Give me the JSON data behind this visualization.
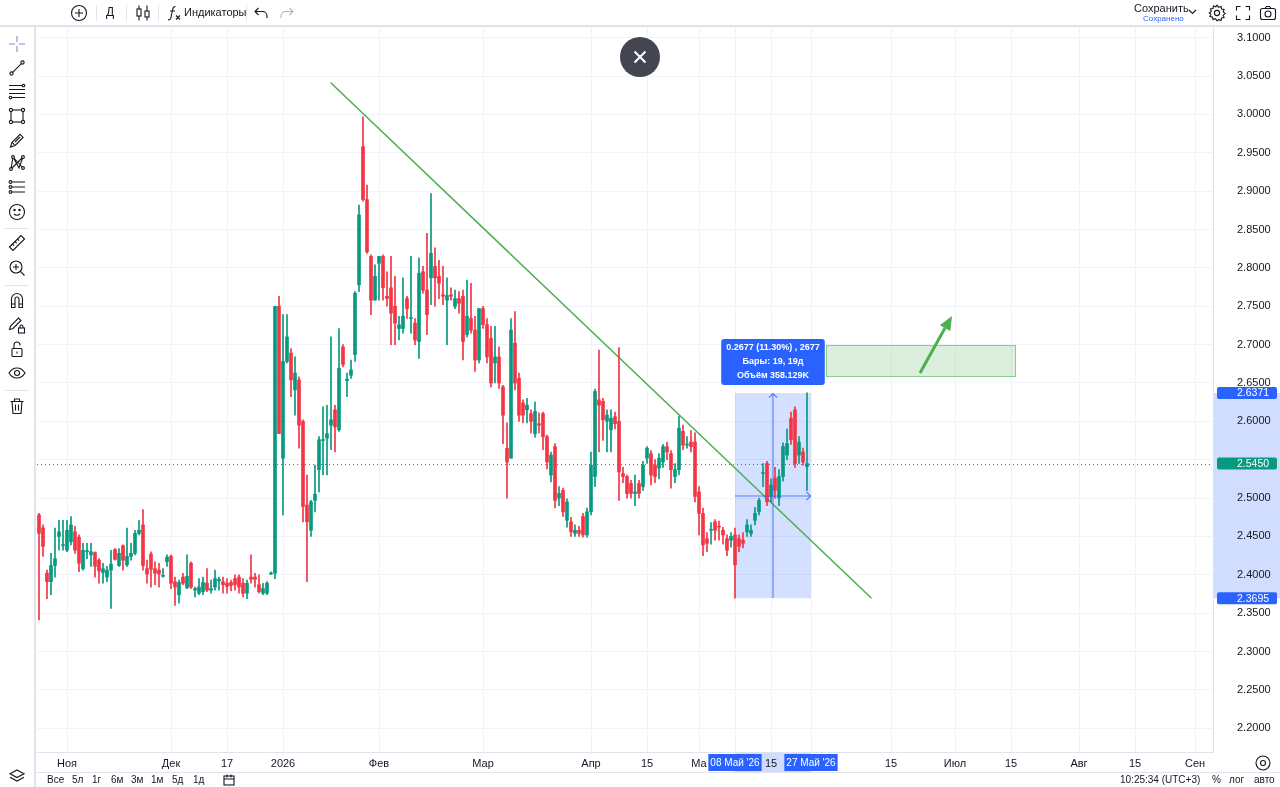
{
  "chart_data": {
    "type": "candlestick",
    "categories": [
      null,
      null,
      null,
      null,
      null,
      null,
      null,
      "Ноя",
      null,
      null,
      null,
      null,
      null,
      null,
      null,
      null,
      null,
      null,
      null,
      null,
      null,
      null,
      null,
      null,
      null,
      null,
      null,
      null,
      null,
      null,
      null,
      null,
      null,
      "Дек",
      null,
      null,
      null,
      null,
      null,
      null,
      null,
      null,
      null,
      null,
      null,
      null,
      null,
      "17",
      null,
      null,
      null,
      null,
      null,
      null,
      null,
      null,
      null,
      null,
      null,
      null,
      null,
      "2026",
      null,
      null,
      null,
      null,
      null,
      null,
      null,
      null,
      null,
      null,
      null,
      null,
      null,
      null,
      null,
      null,
      null,
      null,
      null,
      null,
      null,
      null,
      null,
      "Фев",
      null,
      null,
      null,
      null,
      null,
      null,
      null,
      null,
      null,
      null,
      null,
      null,
      null,
      null,
      null,
      null,
      null,
      null,
      null,
      null,
      null,
      null,
      null,
      null,
      null,
      "Мар",
      null,
      null,
      null,
      null,
      null,
      null,
      null,
      null,
      null,
      null,
      null,
      null,
      null,
      null,
      null,
      null,
      null,
      null,
      null,
      null,
      null,
      null,
      null,
      null,
      null,
      null,
      "Апр",
      null,
      null,
      null,
      null,
      null,
      null,
      null,
      null,
      null,
      null,
      null,
      null,
      null,
      "15",
      null,
      null,
      null,
      null,
      null,
      null,
      null,
      null,
      null,
      null,
      null,
      null,
      "Ма",
      null,
      null,
      null,
      null,
      null,
      null,
      null,
      null,
      "08 Май '26",
      null,
      null,
      null,
      null,
      null,
      null,
      null,
      null,
      "15",
      null,
      null,
      null,
      null,
      null,
      null,
      null,
      null,
      null,
      "27 Май '26",
      null,
      null,
      null,
      null,
      null,
      null,
      null,
      null,
      null,
      null,
      null,
      null,
      null,
      null,
      null,
      null,
      null,
      null,
      null,
      "15",
      null,
      null,
      null,
      null,
      null,
      null,
      null,
      null,
      null,
      null,
      null,
      null,
      null,
      null,
      null,
      "Июл",
      null,
      null,
      null,
      null,
      null,
      null,
      null,
      null,
      null,
      null,
      null,
      null,
      null,
      "15",
      null,
      null,
      null,
      null,
      null,
      null,
      null,
      null,
      null,
      null,
      null,
      null,
      null,
      null,
      null,
      null,
      "Авг",
      null,
      null,
      null,
      null,
      null,
      null,
      null,
      null,
      null,
      null,
      null,
      null,
      null,
      "15",
      null,
      null,
      null,
      null,
      null,
      null,
      null,
      null,
      null,
      null,
      null,
      null,
      null,
      null,
      "Сен",
      null,
      null,
      null,
      null
    ],
    "ohlc": [
      [
        2.478,
        2.48,
        2.341,
        2.454
      ],
      [
        2.461,
        2.465,
        2.424,
        2.437
      ],
      [
        2.402,
        2.406,
        2.369,
        2.391
      ],
      [
        2.391,
        2.428,
        2.374,
        2.412
      ],
      [
        2.412,
        2.461,
        2.397,
        2.421
      ],
      [
        2.45,
        2.471,
        2.432,
        2.456
      ],
      [
        2.438,
        2.471,
        2.432,
        2.439
      ],
      [
        2.432,
        2.471,
        2.43,
        2.458
      ],
      [
        2.443,
        2.476,
        2.439,
        2.465
      ],
      [
        2.456,
        2.463,
        2.428,
        2.432
      ],
      [
        2.449,
        2.452,
        2.404,
        2.415
      ],
      [
        2.408,
        2.441,
        2.406,
        2.432
      ],
      [
        2.43,
        2.441,
        2.421,
        2.431
      ],
      [
        2.426,
        2.441,
        2.411,
        2.43
      ],
      [
        2.429,
        2.43,
        2.397,
        2.411
      ],
      [
        2.419,
        2.421,
        2.389,
        2.405
      ],
      [
        2.403,
        2.415,
        2.389,
        2.408
      ],
      [
        2.397,
        2.411,
        2.391,
        2.406
      ],
      [
        2.406,
        2.432,
        2.356,
        2.414
      ],
      [
        2.433,
        2.434,
        2.419,
        2.42
      ],
      [
        2.412,
        2.434,
        2.411,
        2.428
      ],
      [
        2.438,
        2.439,
        2.406,
        2.419
      ],
      [
        2.413,
        2.461,
        2.411,
        2.424
      ],
      [
        2.424,
        2.441,
        2.419,
        2.428
      ],
      [
        2.428,
        2.458,
        2.426,
        2.454
      ],
      [
        2.454,
        2.471,
        2.452,
        2.458
      ],
      [
        2.465,
        2.485,
        2.406,
        2.412
      ],
      [
        2.408,
        2.419,
        2.389,
        2.401
      ],
      [
        2.427,
        2.43,
        2.384,
        2.407
      ],
      [
        2.408,
        2.417,
        2.387,
        2.402
      ],
      [
        2.406,
        2.415,
        2.384,
        2.401
      ],
      [
        2.398,
        2.408,
        2.397,
        2.398
      ],
      [
        2.417,
        2.426,
        2.411,
        2.423
      ],
      [
        2.424,
        2.426,
        2.382,
        2.389
      ],
      [
        2.391,
        2.397,
        2.36,
        2.384
      ],
      [
        2.374,
        2.393,
        2.363,
        2.39
      ],
      [
        2.397,
        2.402,
        2.387,
        2.389
      ],
      [
        2.383,
        2.426,
        2.382,
        2.398
      ],
      [
        2.415,
        2.417,
        2.382,
        2.384
      ],
      [
        2.38,
        2.384,
        2.371,
        2.382
      ],
      [
        2.376,
        2.395,
        2.374,
        2.384
      ],
      [
        2.378,
        2.397,
        2.374,
        2.39
      ],
      [
        2.389,
        2.408,
        2.378,
        2.38
      ],
      [
        2.38,
        2.393,
        2.376,
        2.382
      ],
      [
        2.384,
        2.406,
        2.38,
        2.395
      ],
      [
        2.392,
        2.397,
        2.38,
        2.394
      ],
      [
        2.391,
        2.397,
        2.376,
        2.387
      ],
      [
        2.389,
        2.395,
        2.376,
        2.385
      ],
      [
        2.39,
        2.393,
        2.379,
        2.386
      ],
      [
        2.395,
        2.4,
        2.38,
        2.387
      ],
      [
        2.397,
        2.4,
        2.376,
        2.384
      ],
      [
        2.389,
        2.395,
        2.371,
        2.376
      ],
      [
        2.376,
        2.393,
        2.369,
        2.389
      ],
      [
        2.397,
        2.426,
        2.389,
        2.394
      ],
      [
        2.397,
        2.402,
        2.384,
        2.394
      ],
      [
        2.387,
        2.4,
        2.376,
        2.378
      ],
      [
        2.376,
        2.389,
        2.374,
        2.382
      ],
      [
        2.376,
        2.391,
        2.374,
        2.389
      ],
      [
        2.401,
        2.404,
        2.4,
        2.402
      ],
      [
        2.402,
        2.75,
        2.395,
        2.75
      ],
      [
        2.75,
        2.763,
        2.584,
        2.584
      ],
      [
        2.552,
        2.739,
        2.478,
        2.678
      ],
      [
        2.678,
        2.739,
        2.676,
        2.71
      ],
      [
        2.689,
        2.695,
        2.632,
        2.654
      ],
      [
        2.641,
        2.684,
        2.608,
        2.663
      ],
      [
        2.654,
        2.658,
        2.565,
        2.595
      ],
      [
        2.6,
        2.602,
        2.469,
        2.489
      ],
      [
        2.491,
        2.53,
        2.391,
        2.469
      ],
      [
        2.458,
        2.497,
        2.45,
        2.495
      ],
      [
        2.497,
        2.543,
        2.482,
        2.505
      ],
      [
        2.537,
        2.58,
        2.508,
        2.576
      ],
      [
        2.575,
        2.619,
        2.53,
        2.576
      ],
      [
        2.578,
        2.621,
        2.53,
        2.584
      ],
      [
        2.595,
        2.71,
        2.563,
        2.602
      ],
      [
        2.615,
        2.621,
        2.56,
        2.593
      ],
      [
        2.589,
        2.721,
        2.587,
        2.669
      ],
      [
        2.697,
        2.7,
        2.671,
        2.674
      ],
      [
        2.653,
        2.663,
        2.632,
        2.655
      ],
      [
        2.66,
        2.68,
        2.656,
        2.667
      ],
      [
        2.687,
        2.769,
        2.678,
        2.767
      ],
      [
        2.778,
        2.882,
        2.769,
        2.869
      ],
      [
        2.958,
        2.997,
        2.887,
        2.889
      ],
      [
        2.889,
        2.908,
        2.819,
        2.821
      ],
      [
        2.815,
        2.817,
        2.739,
        2.758
      ],
      [
        2.758,
        2.804,
        2.758,
        2.789
      ],
      [
        2.806,
        2.815,
        2.758,
        2.815
      ],
      [
        2.815,
        2.817,
        2.758,
        2.774
      ],
      [
        2.763,
        2.795,
        2.75,
        2.76
      ],
      [
        2.774,
        2.815,
        2.7,
        2.741
      ],
      [
        2.75,
        2.789,
        2.7,
        2.728
      ],
      [
        2.721,
        2.737,
        2.706,
        2.726
      ],
      [
        2.721,
        2.787,
        2.715,
        2.737
      ],
      [
        2.76,
        2.763,
        2.734,
        2.747
      ],
      [
        2.734,
        2.815,
        2.715,
        2.734
      ],
      [
        2.728,
        2.734,
        2.7,
        2.706
      ],
      [
        2.704,
        2.813,
        2.682,
        2.793
      ],
      [
        2.795,
        2.802,
        2.767,
        2.771
      ],
      [
        2.771,
        2.845,
        2.713,
        2.739
      ],
      [
        2.787,
        2.897,
        2.752,
        2.819
      ],
      [
        2.802,
        2.826,
        2.75,
        2.787
      ],
      [
        2.789,
        2.81,
        2.76,
        2.78
      ],
      [
        2.765,
        2.802,
        2.752,
        2.763
      ],
      [
        2.758,
        2.787,
        2.7,
        2.764
      ],
      [
        2.765,
        2.774,
        2.758,
        2.763
      ],
      [
        2.75,
        2.771,
        2.747,
        2.76
      ],
      [
        2.76,
        2.769,
        2.741,
        2.754
      ],
      [
        2.763,
        2.771,
        2.68,
        2.704
      ],
      [
        2.713,
        2.784,
        2.71,
        2.737
      ],
      [
        2.734,
        2.78,
        2.715,
        2.719
      ],
      [
        2.719,
        2.737,
        2.665,
        2.68
      ],
      [
        2.68,
        2.747,
        2.676,
        2.747
      ],
      [
        2.747,
        2.75,
        2.721,
        2.726
      ],
      [
        2.726,
        2.734,
        2.676,
        2.684
      ],
      [
        2.708,
        2.724,
        2.645,
        2.65
      ],
      [
        2.676,
        2.724,
        2.65,
        2.684
      ],
      [
        2.684,
        2.697,
        2.643,
        2.65
      ],
      [
        2.645,
        2.647,
        2.571,
        2.608
      ],
      [
        2.565,
        2.598,
        2.5,
        2.547
      ],
      [
        2.552,
        2.734,
        2.552,
        2.719
      ],
      [
        2.702,
        2.743,
        2.641,
        2.65
      ],
      [
        2.656,
        2.663,
        2.6,
        2.608
      ],
      [
        2.624,
        2.628,
        2.598,
        2.608
      ],
      [
        2.615,
        2.63,
        2.598,
        2.621
      ],
      [
        2.61,
        2.615,
        2.585,
        2.6
      ],
      [
        2.584,
        2.625,
        2.579,
        2.613
      ],
      [
        2.597,
        2.611,
        2.585,
        2.595
      ],
      [
        2.61,
        2.612,
        2.563,
        2.58
      ],
      [
        2.58,
        2.582,
        2.538,
        2.547
      ],
      [
        2.53,
        2.56,
        2.521,
        2.556
      ],
      [
        2.567,
        2.571,
        2.487,
        2.497
      ],
      [
        2.5,
        2.515,
        2.49,
        2.506
      ],
      [
        2.51,
        2.513,
        2.476,
        2.482
      ],
      [
        2.471,
        2.499,
        2.462,
        2.495
      ],
      [
        2.469,
        2.475,
        2.45,
        2.456
      ],
      [
        2.454,
        2.465,
        2.45,
        2.458
      ],
      [
        2.458,
        2.463,
        2.45,
        2.454
      ],
      [
        2.476,
        2.48,
        2.449,
        2.452
      ],
      [
        2.452,
        2.487,
        2.449,
        2.482
      ],
      [
        2.482,
        2.56,
        2.478,
        2.543
      ],
      [
        2.528,
        2.642,
        2.515,
        2.639
      ],
      [
        2.628,
        2.693,
        2.56,
        2.621
      ],
      [
        2.626,
        2.63,
        2.575,
        2.602
      ],
      [
        2.6,
        2.615,
        2.56,
        2.608
      ],
      [
        2.589,
        2.615,
        2.56,
        2.604
      ],
      [
        2.606,
        2.612,
        2.59,
        2.597
      ],
      [
        2.6,
        2.696,
        2.497,
        2.534
      ],
      [
        2.532,
        2.54,
        2.52,
        2.528
      ],
      [
        2.528,
        2.53,
        2.5,
        2.506
      ],
      [
        2.519,
        2.523,
        2.5,
        2.506
      ],
      [
        2.506,
        2.53,
        2.49,
        2.508
      ],
      [
        2.519,
        2.523,
        2.5,
        2.506
      ],
      [
        2.515,
        2.548,
        2.51,
        2.543
      ],
      [
        2.552,
        2.567,
        2.545,
        2.565
      ],
      [
        2.558,
        2.562,
        2.517,
        2.53
      ],
      [
        2.543,
        2.55,
        2.52,
        2.528
      ],
      [
        2.539,
        2.558,
        2.525,
        2.552
      ],
      [
        2.547,
        2.57,
        2.54,
        2.567
      ],
      [
        2.567,
        2.573,
        2.55,
        2.56
      ],
      [
        2.558,
        2.562,
        2.513,
        2.537
      ],
      [
        2.528,
        2.545,
        2.52,
        2.537
      ],
      [
        2.537,
        2.607,
        2.53,
        2.591
      ],
      [
        2.587,
        2.595,
        2.563,
        2.569
      ],
      [
        2.569,
        2.58,
        2.565,
        2.57
      ],
      [
        2.573,
        2.588,
        2.56,
        2.567
      ],
      [
        2.573,
        2.585,
        2.495,
        2.502
      ],
      [
        2.508,
        2.515,
        2.452,
        2.48
      ],
      [
        2.48,
        2.487,
        2.425,
        2.439
      ],
      [
        2.447,
        2.455,
        2.43,
        2.441
      ],
      [
        2.458,
        2.468,
        2.44,
        2.459
      ],
      [
        2.469,
        2.472,
        2.445,
        2.458
      ],
      [
        2.463,
        2.47,
        2.445,
        2.462
      ],
      [
        2.458,
        2.462,
        2.44,
        2.452
      ],
      [
        2.447,
        2.452,
        2.425,
        2.432
      ],
      [
        2.445,
        2.455,
        2.436,
        2.45
      ],
      [
        2.452,
        2.461,
        2.3695,
        2.413
      ],
      [
        2.447,
        2.452,
        2.43,
        2.437
      ],
      [
        2.445,
        2.455,
        2.435,
        2.441
      ],
      [
        2.456,
        2.472,
        2.45,
        2.465
      ],
      [
        2.454,
        2.465,
        2.45,
        2.458
      ],
      [
        2.471,
        2.488,
        2.465,
        2.48
      ],
      [
        2.482,
        2.5,
        2.478,
        2.497
      ],
      [
        2.532,
        2.545,
        2.515,
        2.533
      ],
      [
        2.545,
        2.548,
        2.49,
        2.495
      ],
      [
        2.502,
        2.525,
        2.495,
        2.517
      ],
      [
        2.526,
        2.54,
        2.5,
        2.51
      ],
      [
        2.5,
        2.537,
        2.49,
        2.528
      ],
      [
        2.528,
        2.572,
        2.522,
        2.567
      ],
      [
        2.556,
        2.59,
        2.55,
        2.571
      ],
      [
        2.604,
        2.612,
        2.57,
        2.576
      ],
      [
        2.615,
        2.619,
        2.54,
        2.545
      ],
      [
        2.556,
        2.58,
        2.545,
        2.573
      ],
      [
        2.56,
        2.565,
        2.543,
        2.547
      ],
      [
        2.541,
        2.6371,
        2.51,
        2.545
      ],
      null,
      null,
      null,
      null,
      null,
      null,
      null,
      null,
      null,
      null,
      null,
      null,
      null,
      null,
      null,
      null,
      null,
      null,
      null,
      null,
      null,
      null,
      null,
      null,
      null,
      null,
      null,
      null,
      null,
      null,
      null,
      null,
      null,
      null,
      null,
      null,
      null,
      null,
      null,
      null,
      null,
      null,
      null,
      null,
      null,
      null,
      null,
      null,
      null,
      null,
      null,
      null,
      null,
      null,
      null,
      null,
      null,
      null,
      null,
      null,
      null,
      null,
      null,
      null,
      null,
      null,
      null,
      null,
      null,
      null,
      null,
      null,
      null,
      null,
      null,
      null,
      null,
      null,
      null,
      null,
      null,
      null,
      null,
      null,
      null,
      null,
      null,
      null,
      null,
      null,
      null,
      null,
      null,
      null,
      null,
      null,
      null,
      null,
      null,
      null,
      null
    ],
    "colors": [
      "#f23645",
      "#f23645",
      "#f23645",
      "#089981",
      "#089981",
      "#089981",
      "#089981",
      "#089981",
      "#089981",
      "#f23645",
      "#f23645",
      "#089981",
      "#089981",
      "#089981",
      "#f23645",
      "#f23645",
      "#089981",
      "#089981",
      "#089981",
      "#f23645",
      "#089981",
      "#f23645",
      "#089981",
      "#089981",
      "#089981",
      "#089981",
      "#f23645",
      "#f23645",
      "#f23645",
      "#f23645",
      "#f23645",
      "#089981",
      "#089981",
      "#f23645",
      "#f23645",
      "#089981",
      "#f23645",
      "#089981",
      "#f23645",
      "#089981",
      "#089981",
      "#089981",
      "#f23645",
      "#089981",
      "#089981",
      "#089981",
      "#f23645",
      "#f23645",
      "#f23645",
      "#f23645",
      "#f23645",
      "#f23645",
      "#089981",
      "#f23645",
      "#f23645",
      "#f23645",
      "#089981",
      "#089981",
      "#089981",
      "#089981",
      "#f23645",
      "#089981",
      "#089981",
      "#f23645",
      "#089981",
      "#f23645",
      "#f23645",
      "#f23645",
      "#089981",
      "#089981",
      "#089981",
      "#089981",
      "#089981",
      "#089981",
      "#f23645",
      "#089981",
      "#f23645",
      "#089981",
      "#089981",
      "#089981",
      "#089981",
      "#f23645",
      "#f23645",
      "#f23645",
      "#089981",
      "#089981",
      "#f23645",
      "#f23645",
      "#f23645",
      "#f23645",
      "#089981",
      "#089981",
      "#f23645",
      "#089981",
      "#f23645",
      "#089981",
      "#f23645",
      "#f23645",
      "#089981",
      "#f23645",
      "#f23645",
      "#f23645",
      "#089981",
      "#f23645",
      "#089981",
      "#f23645",
      "#f23645",
      "#089981",
      "#f23645",
      "#f23645",
      "#089981",
      "#f23645",
      "#f23645",
      "#f23645",
      "#089981",
      "#f23645",
      "#f23645",
      "#f23645",
      "#089981",
      "#f23645",
      "#f23645",
      "#f23645",
      "#089981",
      "#f23645",
      "#089981",
      "#f23645",
      "#f23645",
      "#f23645",
      "#089981",
      "#f23645",
      "#089981",
      "#f23645",
      "#089981",
      "#f23645",
      "#089981",
      "#f23645",
      "#f23645",
      "#089981",
      "#089981",
      "#089981",
      "#f23645",
      "#f23645",
      "#089981",
      "#089981",
      "#f23645",
      "#f23645",
      "#f23645",
      "#f23645",
      "#f23645",
      "#089981",
      "#f23645",
      "#089981",
      "#089981",
      "#f23645",
      "#f23645",
      "#089981",
      "#089981",
      "#f23645",
      "#f23645",
      "#089981",
      "#089981",
      "#f23645",
      "#089981",
      "#f23645",
      "#f23645",
      "#f23645",
      "#f23645",
      "#f23645",
      "#089981",
      "#f23645",
      "#f23645",
      "#f23645",
      "#f23645",
      "#089981",
      "#f23645",
      "#f23645",
      "#f23645",
      "#089981",
      "#089981",
      "#089981",
      "#089981",
      "#089981",
      "#f23645",
      "#089981",
      "#f23645",
      "#089981",
      "#089981",
      "#089981",
      "#f23645",
      "#f23645",
      "#089981",
      "#f23645",
      "#089981",
      null,
      null,
      null,
      null,
      null,
      null,
      null,
      null,
      null,
      null,
      null,
      null,
      null,
      null,
      null,
      null,
      null,
      null,
      null,
      null,
      null,
      null,
      null,
      null,
      null,
      null,
      null,
      null,
      null,
      null,
      null,
      null,
      null,
      null,
      null,
      null,
      null,
      null,
      null,
      null,
      null,
      null,
      null,
      null,
      null,
      null,
      null,
      null,
      null,
      null,
      null,
      null,
      null,
      null,
      null,
      null,
      null,
      null,
      null,
      null,
      null,
      null,
      null,
      null,
      null,
      null,
      null,
      null,
      null,
      null,
      null,
      null,
      null,
      null,
      null,
      null,
      null,
      null,
      null,
      null,
      null,
      null,
      null,
      null,
      null,
      null,
      null,
      null,
      null,
      null,
      null,
      null,
      null,
      null,
      null,
      null,
      null,
      null,
      null,
      null,
      null
    ],
    "series": [
      {
        "type": "line",
        "color": "#4caf50",
        "values": [
          null,
          null,
          null,
          null,
          null,
          null,
          null,
          null,
          null,
          null,
          null,
          null,
          null,
          null,
          null,
          null,
          null,
          null,
          null,
          null,
          null,
          null,
          null,
          null,
          null,
          null,
          null,
          null,
          null,
          null,
          null,
          null,
          null,
          null,
          null,
          null,
          null,
          null,
          null,
          null,
          null,
          null,
          null,
          null,
          null,
          null,
          null,
          null,
          null,
          null,
          null,
          null,
          null,
          null,
          null,
          null,
          null,
          null,
          null,
          null,
          null,
          null,
          null,
          null,
          null,
          null,
          null,
          null,
          null,
          null,
          null,
          null,
          null,
          3.041,
          null,
          null,
          null,
          null,
          null,
          null,
          null,
          null,
          null,
          null,
          null,
          null,
          null,
          null,
          null,
          null,
          null,
          null,
          null,
          null,
          null,
          null,
          null,
          null,
          null,
          null,
          null,
          null,
          null,
          null,
          null,
          null,
          null,
          null,
          null,
          null,
          null,
          null,
          null,
          null,
          null,
          null,
          null,
          null,
          null,
          null,
          null,
          null,
          null,
          null,
          null,
          null,
          null,
          null,
          null,
          null,
          null,
          null,
          null,
          null,
          null,
          null,
          null,
          null,
          null,
          null,
          null,
          null,
          null,
          null,
          null,
          null,
          null,
          null,
          null,
          null,
          null,
          null,
          null,
          null,
          null,
          null,
          null,
          null,
          null,
          null,
          null,
          null,
          null,
          null,
          null,
          null,
          null,
          null,
          null,
          null,
          null,
          null,
          null,
          null,
          null,
          null,
          null,
          null,
          null,
          null,
          null,
          null,
          null,
          null,
          null,
          null,
          null,
          null,
          null,
          null,
          null,
          null,
          null,
          null,
          null,
          null,
          null,
          null,
          null,
          null,
          null,
          null,
          null,
          null,
          null,
          null,
          null,
          null,
          2.37,
          null,
          null,
          null,
          null,
          null,
          null,
          null,
          null,
          null,
          null,
          null,
          null,
          null,
          null,
          null,
          null,
          null,
          null,
          null,
          null,
          null,
          null,
          null,
          null,
          null,
          null,
          null,
          null,
          null,
          null,
          null,
          null,
          null,
          null,
          null,
          null,
          null,
          null,
          null,
          null,
          null,
          null,
          null,
          null,
          null,
          null,
          null,
          null,
          null,
          null,
          null,
          null,
          null,
          null,
          null,
          null,
          null,
          null,
          null,
          null,
          null,
          null,
          null,
          null,
          null,
          null,
          null,
          null,
          null,
          null,
          null,
          null,
          null,
          null,
          null,
          null,
          null,
          null,
          null,
          null,
          null,
          null,
          null,
          null,
          null
        ]
      }
    ],
    "ylim": [
      2.169,
      3.114
    ],
    "yticks": [
      {
        "value": 2.2,
        "label": "2.2000"
      },
      {
        "value": 2.25,
        "label": "2.2500"
      },
      {
        "value": 2.3,
        "label": "2.3000"
      },
      {
        "value": 2.35,
        "label": "2.3500"
      },
      {
        "value": 2.4,
        "label": "2.4000"
      },
      {
        "value": 2.45,
        "label": "2.4500"
      },
      {
        "value": 2.5,
        "label": "2.5000"
      },
      {
        "value": 2.55,
        "label": null
      },
      {
        "value": 2.6,
        "label": "2.6000"
      },
      {
        "value": 2.65,
        "label": "2.6500"
      },
      {
        "value": 2.7,
        "label": "2.7000"
      },
      {
        "value": 2.75,
        "label": "2.7500"
      },
      {
        "value": 2.8,
        "label": "2.8000"
      },
      {
        "value": 2.85,
        "label": "2.8500"
      },
      {
        "value": 2.9,
        "label": "2.9000"
      },
      {
        "value": 2.95,
        "label": "2.9500"
      },
      {
        "value": 3.0,
        "label": "3.0000"
      },
      {
        "value": 3.05,
        "label": "3.0500"
      },
      {
        "value": 3.1,
        "label": "3.1000"
      }
    ],
    "grid": true,
    "bands": [
      {
        "axis": "x",
        "from": "08 Май '26",
        "to": "27 Май '26",
        "color": "#2962ff"
      }
    ],
    "ref_lines": [
      {
        "axis": "y",
        "value": 2.545,
        "label": "2.5450",
        "color": "#089981",
        "line_style": "dotted"
      }
    ],
    "annotations": [
      "0.2677 (11.30%) , 2677",
      "Бары: 19, 19д",
      "Объём 358.129K",
      "Д",
      "Индикаторы",
      "Сохранить",
      "Сохранено",
      "Все",
      "5л",
      "1г",
      "6м",
      "3м",
      "1м",
      "5д",
      "1д",
      "10:25:34 (UTC+3)",
      "%",
      "лог",
      "авто",
      "2.6371",
      "2.3695"
    ]
  }
}
